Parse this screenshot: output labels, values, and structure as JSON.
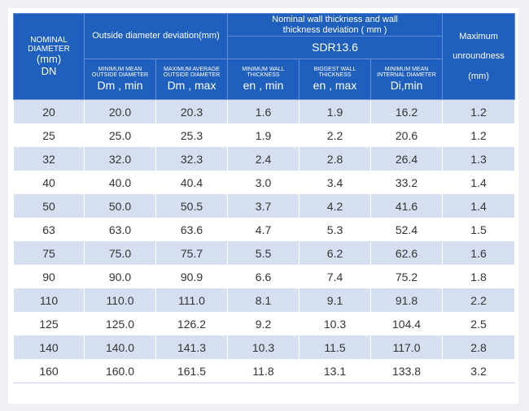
{
  "header": {
    "nominal_diameter": {
      "line1": "NOMINAL",
      "line2": "DIAMETER",
      "unit": "(mm)",
      "symbol": "DN"
    },
    "outside_group": "Outside diameter deviation(mm)",
    "wall_group": {
      "line1": "Nominal wall thickness and wall",
      "line2": "thickness deviation ( mm )"
    },
    "sdr": "SDR13.6",
    "max_unroundness": {
      "line1": "Maximum",
      "line2": "unroundness",
      "unit": "(mm)"
    },
    "min_mean_od": {
      "l1": "MINIMUM MEAN",
      "l2": "OUTSIDE DIAMETER",
      "symbol": "Dm , min"
    },
    "max_avg_od": {
      "l1": "MAXIMUM AVERAGE",
      "l2": "OUTSIDE DIAMETER",
      "symbol": "Dm , max"
    },
    "min_wall": {
      "l1": "MINIMUM WALL",
      "l2": "THICKNESS",
      "symbol": "en , min"
    },
    "max_wall": {
      "l1": "BIGGEST WALL",
      "l2": "THICKNESS",
      "symbol": "en , max"
    },
    "min_id": {
      "l1": "MINIMUM MEAN",
      "l2": "INTERNAL DIAMETER",
      "symbol": "Di,min"
    }
  },
  "rows": [
    [
      "20",
      "20.0",
      "20.3",
      "1.6",
      "1.9",
      "16.2",
      "1.2"
    ],
    [
      "25",
      "25.0",
      "25.3",
      "1.9",
      "2.2",
      "20.6",
      "1.2"
    ],
    [
      "32",
      "32.0",
      "32.3",
      "2.4",
      "2.8",
      "26.4",
      "1.3"
    ],
    [
      "40",
      "40.0",
      "40.4",
      "3.0",
      "3.4",
      "33.2",
      "1.4"
    ],
    [
      "50",
      "50.0",
      "50.5",
      "3.7",
      "4.2",
      "41.6",
      "1.4"
    ],
    [
      "63",
      "63.0",
      "63.6",
      "4.7",
      "5.3",
      "52.4",
      "1.5"
    ],
    [
      "75",
      "75.0",
      "75.7",
      "5.5",
      "6.2",
      "62.6",
      "1.6"
    ],
    [
      "90",
      "90.0",
      "90.9",
      "6.6",
      "7.4",
      "75.2",
      "1.8"
    ],
    [
      "110",
      "110.0",
      "111.0",
      "8.1",
      "9.1",
      "91.8",
      "2.2"
    ],
    [
      "125",
      "125.0",
      "126.2",
      "9.2",
      "10.3",
      "104.4",
      "2.5"
    ],
    [
      "140",
      "140.0",
      "141.3",
      "10.3",
      "11.5",
      "117.0",
      "2.8"
    ],
    [
      "160",
      "160.0",
      "161.5",
      "11.8",
      "13.1",
      "133.8",
      "3.2"
    ]
  ],
  "colors": {
    "header_bg": "#1f5fbd",
    "row_alt_bg": "#d6dff0",
    "row_bg": "#ffffff",
    "page_bg": "#eef0f5"
  }
}
